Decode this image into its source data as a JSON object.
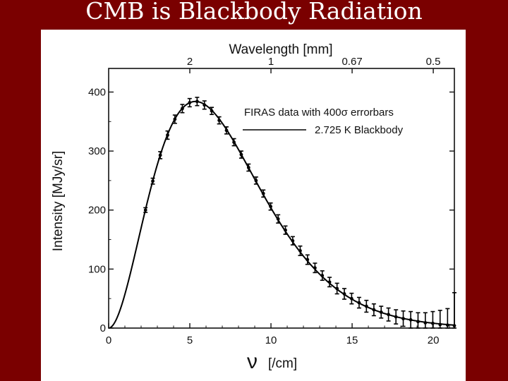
{
  "slide": {
    "title": "CMB is Blackbody Radiation"
  },
  "chart_data": {
    "type": "scatter",
    "title": "",
    "xlabel_symbol": "ν",
    "xlabel_unit": "[/cm]",
    "ylabel": "Intensity [MJy/sr]",
    "top_axis_label": "Wavelength [mm]",
    "xlim": [
      0,
      21.3
    ],
    "ylim": [
      0,
      440
    ],
    "x_ticks": [
      "0",
      "5",
      "10",
      "15",
      "20"
    ],
    "y_ticks": [
      "0",
      "100",
      "200",
      "300",
      "400"
    ],
    "top_ticks": [
      {
        "label": "2",
        "nu": 5
      },
      {
        "label": "1",
        "nu": 10
      },
      {
        "label": "0.67",
        "nu": 15
      },
      {
        "label": "0.5",
        "nu": 20
      }
    ],
    "legend": [
      {
        "label": "FIRAS data with 400σ errorbars",
        "kind": "errorbar"
      },
      {
        "label": "2.725 K Blackbody",
        "kind": "line"
      }
    ],
    "legend_position": "top-right",
    "model": {
      "name": "2.725 K Blackbody",
      "temperature_K": 2.725
    },
    "series": [
      {
        "name": "FIRAS data with 400σ errorbars",
        "x": [
          2.27,
          2.72,
          3.18,
          3.63,
          4.08,
          4.54,
          4.99,
          5.45,
          5.9,
          6.35,
          6.81,
          7.26,
          7.72,
          8.17,
          8.62,
          9.08,
          9.53,
          9.98,
          10.44,
          10.89,
          11.34,
          11.8,
          12.25,
          12.71,
          13.16,
          13.61,
          14.07,
          14.52,
          14.97,
          15.43,
          15.88,
          16.34,
          16.79,
          17.24,
          17.7,
          18.15,
          18.61,
          19.06,
          19.51,
          19.97,
          20.42,
          20.88,
          21.3
        ],
        "y": [
          200,
          249,
          293,
          327,
          354,
          372,
          382,
          384,
          378,
          368,
          352,
          335,
          315,
          294,
          272,
          250,
          228,
          206,
          185,
          166,
          148,
          131,
          116,
          102,
          89,
          78,
          67,
          58,
          50,
          43,
          37,
          31,
          27,
          23,
          19,
          16,
          14,
          11,
          9,
          8,
          6,
          5,
          4
        ],
        "err": [
          4,
          5,
          6,
          7,
          7,
          7,
          7,
          7,
          7,
          6,
          6,
          6,
          6,
          6,
          6,
          6,
          6,
          6,
          7,
          7,
          7,
          8,
          8,
          8,
          8,
          8,
          9,
          9,
          9,
          9,
          10,
          10,
          10,
          11,
          12,
          13,
          14,
          15,
          17,
          20,
          24,
          28,
          56
        ]
      }
    ]
  }
}
